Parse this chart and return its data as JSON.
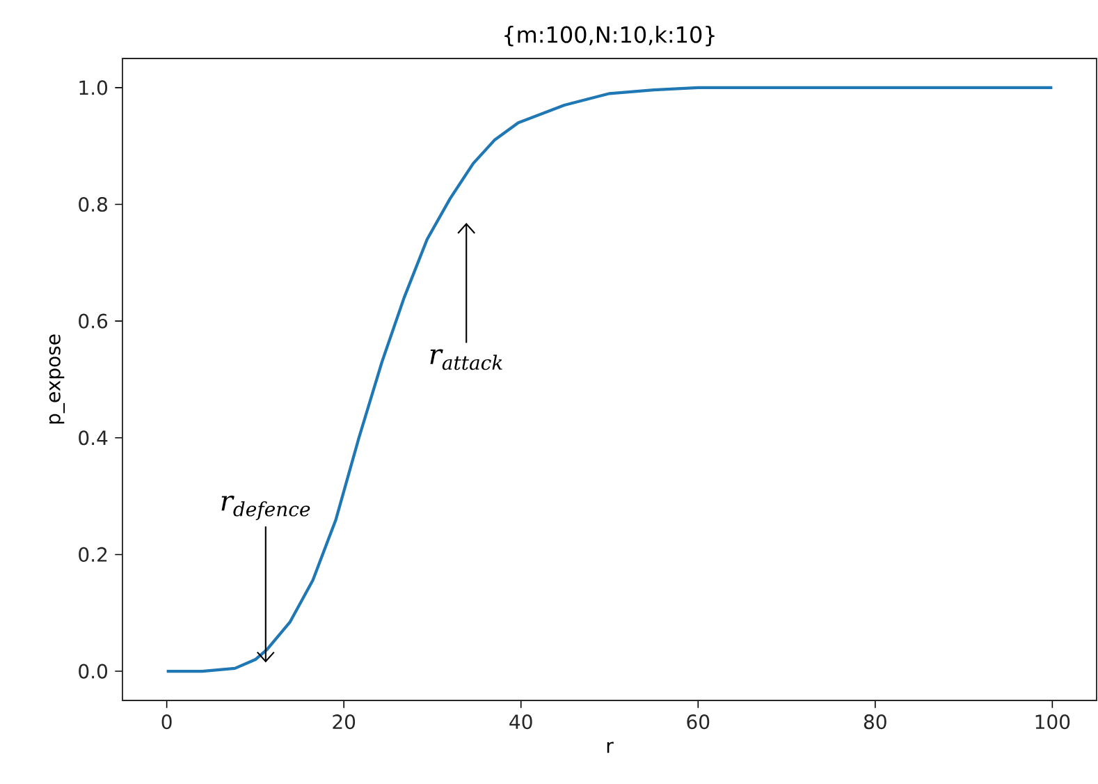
{
  "chart_data": {
    "type": "line",
    "title": "{m:100,N:10,k:10}",
    "xlabel": "r",
    "ylabel": "p_expose",
    "series": [
      {
        "color": "#1f77b4",
        "x": [
          0,
          4,
          7.7,
          10,
          11.3,
          13.9,
          16.5,
          19.1,
          21.7,
          24.3,
          26.8,
          29.4,
          32.0,
          34.6,
          37,
          39.7,
          44.9,
          50,
          55,
          60,
          70,
          80,
          90,
          100
        ],
        "values": [
          0,
          0,
          0.005,
          0.02,
          0.037,
          0.084,
          0.156,
          0.26,
          0.4,
          0.53,
          0.64,
          0.74,
          0.81,
          0.87,
          0.91,
          0.94,
          0.97,
          0.99,
          0.996,
          1.0,
          1.0,
          1.0,
          1.0,
          1.0
        ]
      }
    ],
    "xlim": [
      -5,
      105
    ],
    "ylim": [
      -0.05,
      1.05
    ],
    "xticks": [
      0,
      20,
      40,
      60,
      80,
      100
    ],
    "yticks": [
      {
        "value": 0,
        "label": "0.0"
      },
      {
        "value": 0.2,
        "label": "0.2"
      },
      {
        "value": 0.4,
        "label": "0.4"
      },
      {
        "value": 0.6,
        "label": "0.6"
      },
      {
        "value": 0.8,
        "label": "0.8"
      },
      {
        "value": 1.0,
        "label": "1.0"
      }
    ],
    "annotations": [
      "r$_{defence}$",
      "r$_{attack}$"
    ],
    "grid": false,
    "marker": "none",
    "line_style": "solid"
  }
}
